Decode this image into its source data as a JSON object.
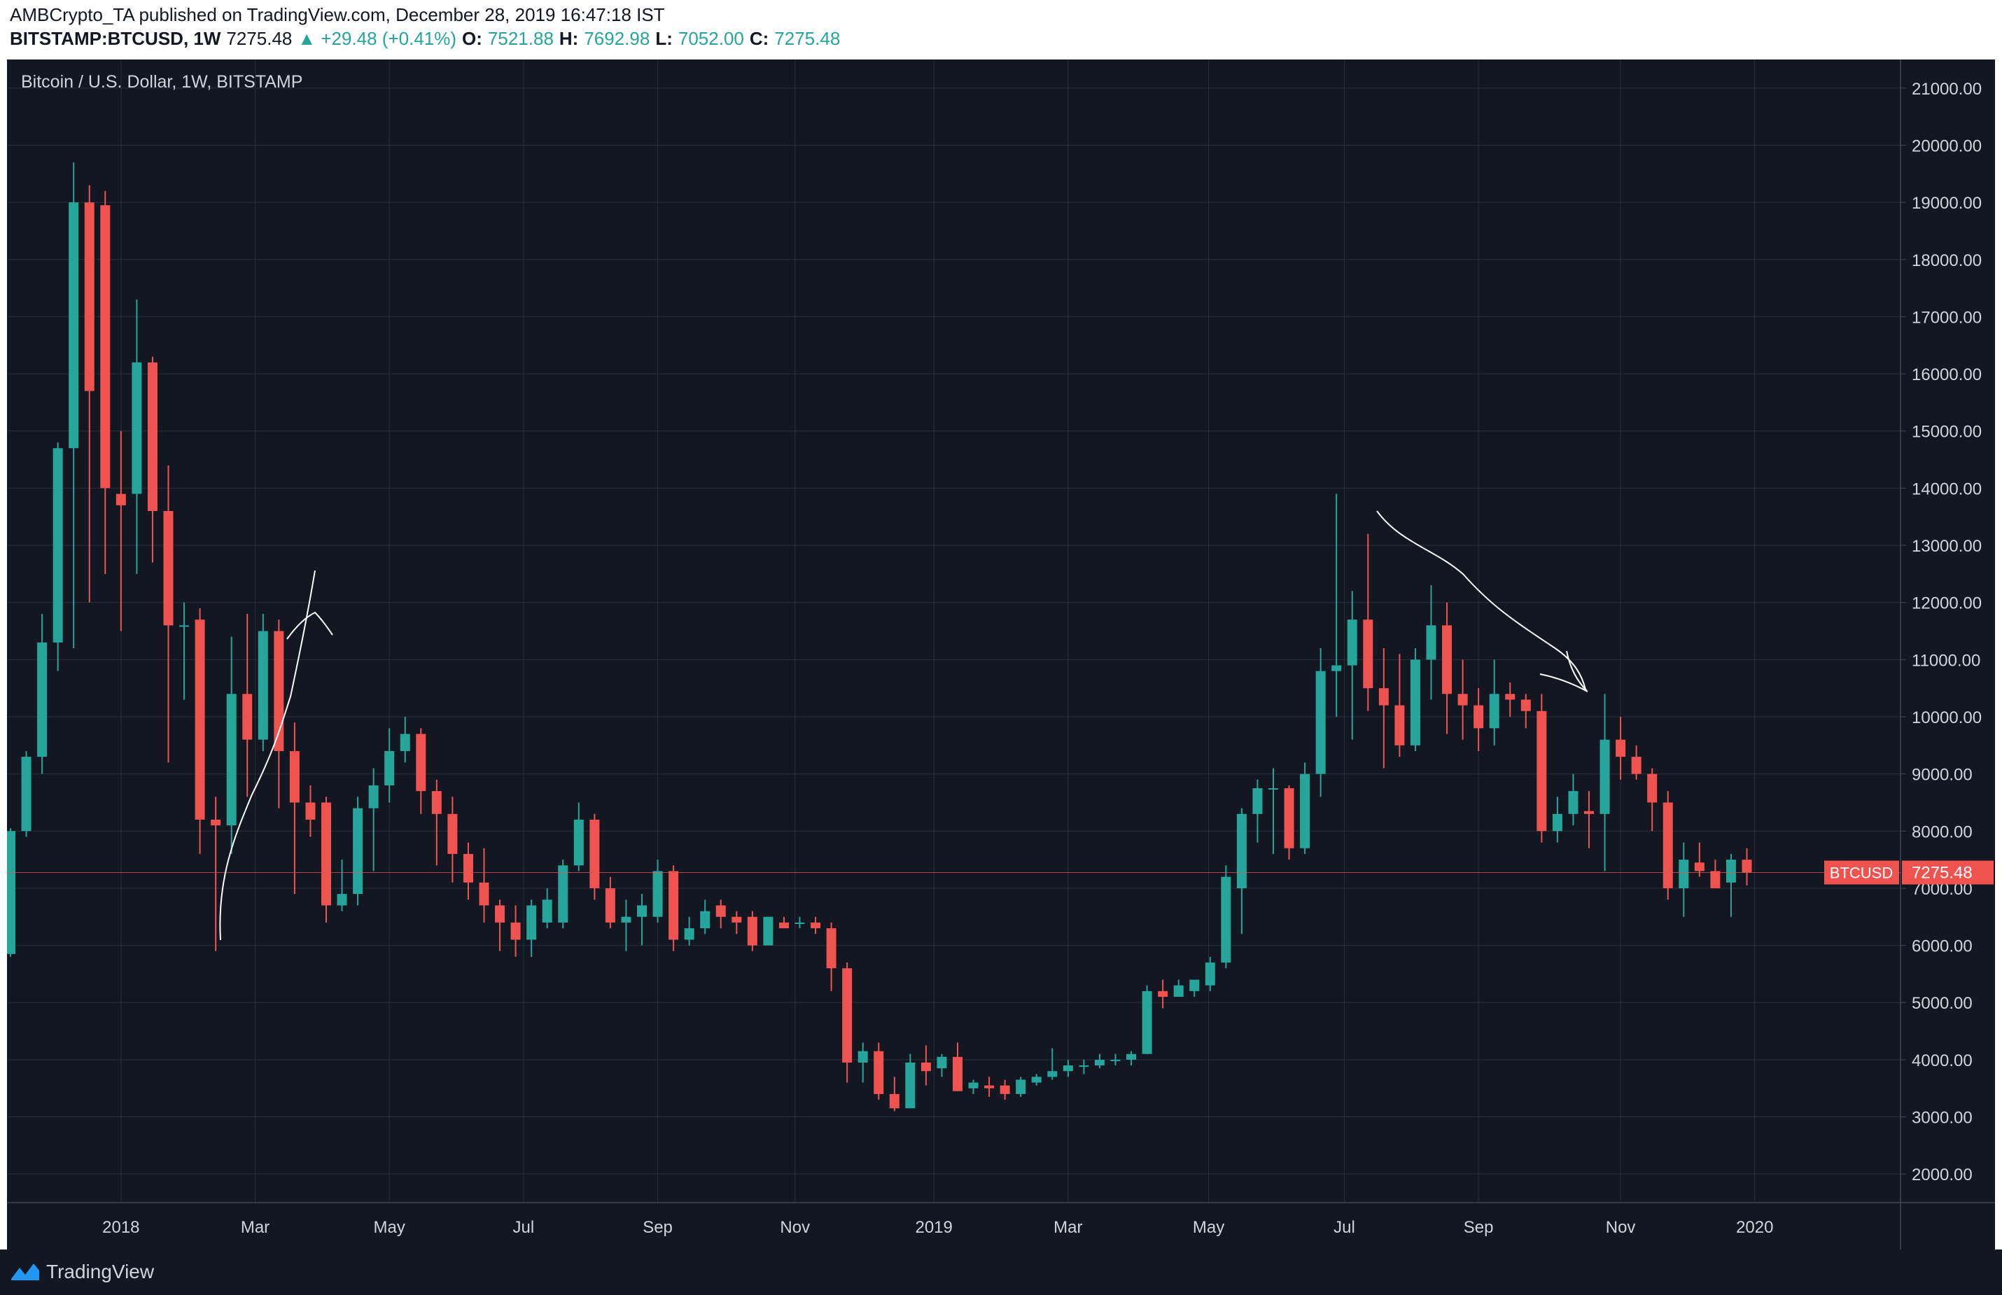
{
  "header": {
    "line1": "AMBCrypto_TA published on TradingView.com, December 28, 2019 16:47:18 IST",
    "symbol": "BITSTAMP:BTCUSD, 1W",
    "last": "7275.48",
    "change": "▲ +29.48 (+0.41%)",
    "o_label": "O:",
    "o": "7521.88",
    "h_label": "H:",
    "h": "7692.98",
    "l_label": "L:",
    "l": "7052.00",
    "c_label": "C:",
    "c": "7275.48"
  },
  "chart_title": "Bitcoin / U.S. Dollar, 1W, BITSTAMP",
  "price_tag": {
    "label": "BTCUSD",
    "value": "7275.48"
  },
  "footer": {
    "brand": "TradingView"
  },
  "colors": {
    "up": "#26a69a",
    "down": "#ef5350",
    "bg": "#131722",
    "grid": "#2a2e39",
    "text": "#d1d4dc",
    "tag": "#ef5350"
  },
  "chart_data": {
    "type": "candlestick",
    "title": "Bitcoin / U.S. Dollar, 1W, BITSTAMP",
    "ylim": [
      1500,
      21500
    ],
    "y_ticks": [
      "2000.00",
      "3000.00",
      "4000.00",
      "5000.00",
      "6000.00",
      "7000.00",
      "8000.00",
      "9000.00",
      "10000.00",
      "11000.00",
      "12000.00",
      "13000.00",
      "14000.00",
      "15000.00",
      "16000.00",
      "17000.00",
      "18000.00",
      "19000.00",
      "20000.00",
      "21000.00"
    ],
    "x_ticks": [
      "2018",
      "Mar",
      "May",
      "Jul",
      "Sep",
      "Nov",
      "2019",
      "Mar",
      "May",
      "Jul",
      "Sep",
      "Nov",
      "2020"
    ],
    "candles": [
      [
        5850,
        8000,
        5800,
        8050
      ],
      [
        8000,
        9300,
        7900,
        9400
      ],
      [
        9300,
        11300,
        9000,
        11800
      ],
      [
        11300,
        14700,
        10800,
        14800
      ],
      [
        14700,
        19000,
        11200,
        19700
      ],
      [
        19000,
        15700,
        12000,
        19300
      ],
      [
        18950,
        14000,
        12500,
        19200
      ],
      [
        13900,
        13700,
        11500,
        15000
      ],
      [
        13900,
        16200,
        12500,
        17300
      ],
      [
        16200,
        13600,
        12700,
        16300
      ],
      [
        13600,
        11600,
        9200,
        14400
      ],
      [
        11600,
        11600,
        10300,
        12000
      ],
      [
        11700,
        8200,
        7600,
        11900
      ],
      [
        8200,
        8100,
        5900,
        8600
      ],
      [
        8100,
        10400,
        7600,
        11400
      ],
      [
        10400,
        9600,
        8600,
        11800
      ],
      [
        9600,
        11500,
        9400,
        11800
      ],
      [
        11500,
        9400,
        8400,
        11700
      ],
      [
        9400,
        8500,
        6900,
        9900
      ],
      [
        8500,
        8200,
        7900,
        8800
      ],
      [
        8500,
        6700,
        6400,
        8600
      ],
      [
        6700,
        6900,
        6600,
        7500
      ],
      [
        6900,
        8400,
        6700,
        8600
      ],
      [
        8400,
        8800,
        7300,
        9100
      ],
      [
        8800,
        9400,
        8500,
        9800
      ],
      [
        9400,
        9700,
        9200,
        10000
      ],
      [
        9700,
        8700,
        8300,
        9800
      ],
      [
        8700,
        8300,
        7400,
        8900
      ],
      [
        8300,
        7600,
        7100,
        8600
      ],
      [
        7600,
        7100,
        6800,
        7800
      ],
      [
        7100,
        6700,
        6400,
        7700
      ],
      [
        6700,
        6400,
        5900,
        6800
      ],
      [
        6400,
        6100,
        5800,
        6700
      ],
      [
        6100,
        6700,
        5800,
        6800
      ],
      [
        6400,
        6800,
        6300,
        7000
      ],
      [
        6400,
        7400,
        6300,
        7500
      ],
      [
        7400,
        8200,
        7300,
        8500
      ],
      [
        8200,
        7000,
        6800,
        8300
      ],
      [
        7000,
        6400,
        6300,
        7200
      ],
      [
        6400,
        6500,
        5900,
        6800
      ],
      [
        6500,
        6700,
        6000,
        6900
      ],
      [
        6500,
        7300,
        6400,
        7500
      ],
      [
        7300,
        6100,
        5900,
        7400
      ],
      [
        6100,
        6300,
        6000,
        6500
      ],
      [
        6300,
        6600,
        6200,
        6800
      ],
      [
        6700,
        6500,
        6300,
        6800
      ],
      [
        6500,
        6400,
        6200,
        6600
      ],
      [
        6500,
        6000,
        5900,
        6600
      ],
      [
        6000,
        6500,
        6000,
        6500
      ],
      [
        6400,
        6300,
        6300,
        6500
      ],
      [
        6400,
        6400,
        6300,
        6500
      ],
      [
        6400,
        6300,
        6200,
        6500
      ],
      [
        6300,
        5600,
        5200,
        6400
      ],
      [
        5600,
        3950,
        3600,
        5700
      ],
      [
        3950,
        4150,
        3600,
        4300
      ],
      [
        4150,
        3400,
        3300,
        4300
      ],
      [
        3400,
        3150,
        3100,
        3700
      ],
      [
        3150,
        3950,
        3200,
        4100
      ],
      [
        3950,
        3800,
        3550,
        4250
      ],
      [
        3850,
        4050,
        3700,
        4100
      ],
      [
        4050,
        3450,
        3450,
        4300
      ],
      [
        3500,
        3600,
        3400,
        3650
      ],
      [
        3550,
        3500,
        3350,
        3700
      ],
      [
        3550,
        3400,
        3300,
        3650
      ],
      [
        3400,
        3650,
        3350,
        3700
      ],
      [
        3600,
        3700,
        3550,
        3750
      ],
      [
        3700,
        3800,
        3650,
        4200
      ],
      [
        3800,
        3900,
        3700,
        4000
      ],
      [
        3900,
        3900,
        3750,
        4000
      ],
      [
        3900,
        4000,
        3850,
        4100
      ],
      [
        4000,
        4000,
        3900,
        4100
      ],
      [
        4000,
        4100,
        3900,
        4150
      ],
      [
        4100,
        5200,
        4100,
        5300
      ],
      [
        5200,
        5100,
        4900,
        5400
      ],
      [
        5100,
        5300,
        5100,
        5400
      ],
      [
        5200,
        5400,
        5100,
        5400
      ],
      [
        5300,
        5700,
        5200,
        5800
      ],
      [
        5700,
        7200,
        5600,
        7400
      ],
      [
        7000,
        8300,
        6200,
        8400
      ],
      [
        8300,
        8750,
        7800,
        8900
      ],
      [
        8750,
        8750,
        7600,
        9100
      ],
      [
        8750,
        7700,
        7500,
        8800
      ],
      [
        7700,
        9000,
        7600,
        9200
      ],
      [
        9000,
        10800,
        8600,
        11200
      ],
      [
        10800,
        10900,
        10000,
        13900
      ],
      [
        10900,
        11700,
        9600,
        12200
      ],
      [
        11700,
        10500,
        10100,
        13200
      ],
      [
        10500,
        10200,
        9100,
        11200
      ],
      [
        10200,
        9500,
        9300,
        11100
      ],
      [
        9500,
        11000,
        9400,
        11200
      ],
      [
        11000,
        11600,
        10300,
        12300
      ],
      [
        11600,
        10400,
        9700,
        12000
      ],
      [
        10400,
        10200,
        9600,
        11000
      ],
      [
        10200,
        9800,
        9400,
        10500
      ],
      [
        9800,
        10400,
        9500,
        11000
      ],
      [
        10400,
        10300,
        10000,
        10600
      ],
      [
        10300,
        10100,
        9800,
        10400
      ],
      [
        10100,
        8000,
        7800,
        10400
      ],
      [
        8000,
        8300,
        7800,
        8600
      ],
      [
        8300,
        8700,
        8100,
        9000
      ],
      [
        8350,
        8300,
        7700,
        8700
      ],
      [
        8300,
        9600,
        7300,
        10400
      ],
      [
        9600,
        9300,
        8900,
        10000
      ],
      [
        9300,
        9000,
        8900,
        9500
      ],
      [
        9000,
        8500,
        8000,
        9100
      ],
      [
        8500,
        7000,
        6800,
        8700
      ],
      [
        7000,
        7500,
        6500,
        7800
      ],
      [
        7450,
        7300,
        7200,
        7800
      ],
      [
        7300,
        7000,
        7000,
        7500
      ],
      [
        7100,
        7500,
        6500,
        7600
      ],
      [
        7500,
        7275,
        7050,
        7700
      ]
    ]
  }
}
